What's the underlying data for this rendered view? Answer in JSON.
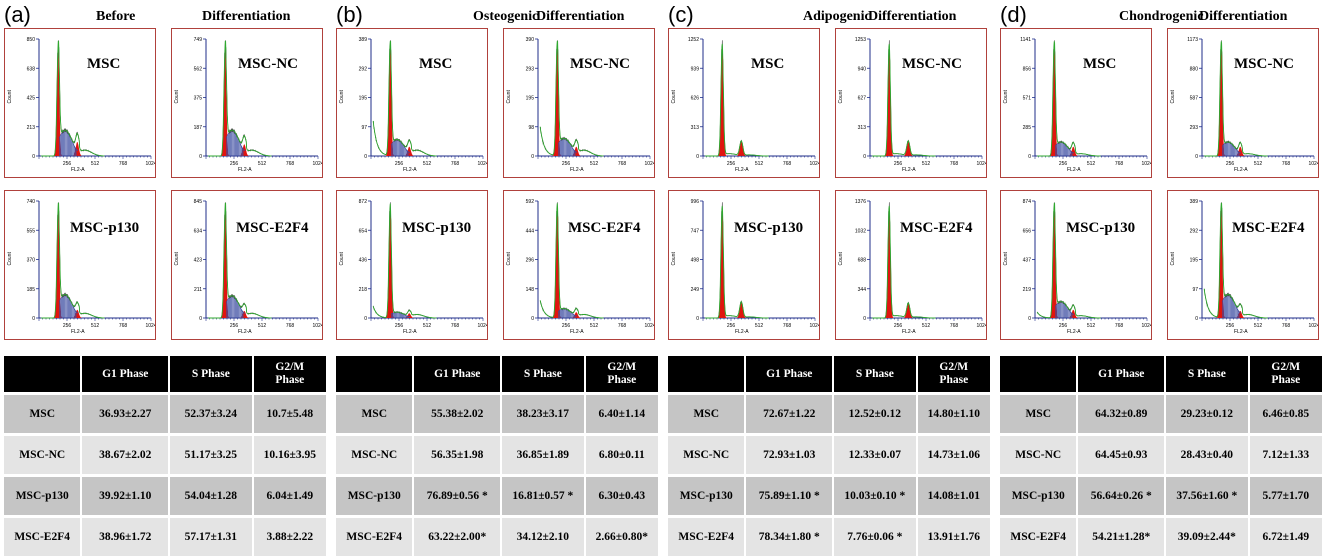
{
  "colors": {
    "frame": "#b0413c",
    "fill": "#e0150f",
    "fit": "#2fa82f",
    "axis": "#1f2d8a",
    "hatch": "#3a4aa0"
  },
  "chart_data": [
    {
      "letter": "(a)",
      "title_parts": [
        "Before",
        "Differentiation"
      ],
      "panels": [
        {
          "label": "MSC",
          "ticks": [
            "850",
            "638",
            "425",
            "213",
            "0"
          ],
          "g1": [
            0.92,
            0.06
          ],
          "g2": [
            0.12,
            0.0
          ],
          "s": 0.22,
          "tail": 0.05
        },
        {
          "label": "MSC-NC",
          "ticks": [
            "749",
            "562",
            "375",
            "187",
            "0"
          ],
          "g1": [
            0.92,
            0.06
          ],
          "g2": [
            0.1,
            0.0
          ],
          "s": 0.22,
          "tail": 0.05
        },
        {
          "label": "MSC-p130",
          "ticks": [
            "740",
            "555",
            "370",
            "185",
            "0"
          ],
          "g1": [
            0.92,
            0.06
          ],
          "g2": [
            0.07,
            0.0
          ],
          "s": 0.2,
          "tail": 0.04
        },
        {
          "label": "MSC-E2F4",
          "ticks": [
            "845",
            "634",
            "423",
            "211",
            "0"
          ],
          "g1": [
            0.92,
            0.06
          ],
          "g2": [
            0.06,
            0.0
          ],
          "s": 0.19,
          "tail": 0.04
        }
      ],
      "table": {
        "headers": [
          "",
          "G1 Phase",
          "S Phase",
          "G2/M Phase"
        ],
        "rows": [
          [
            "MSC",
            "36.93±2.27",
            "52.37±3.24",
            "10.7±5.48"
          ],
          [
            "MSC-NC",
            "38.67±2.02",
            "51.17±3.25",
            "10.16±3.95"
          ],
          [
            "MSC-p130",
            "39.92±1.10",
            "54.04±1.28",
            "6.04±1.49"
          ],
          [
            "MSC-E2F4",
            "38.96±1.72",
            "57.17±1.31",
            "3.88±2.22"
          ]
        ]
      }
    },
    {
      "letter": "(b)",
      "title_parts": [
        "Osteogenic",
        "Differentiation"
      ],
      "panels": [
        {
          "label": "MSC",
          "ticks": [
            "389",
            "292",
            "195",
            "97",
            "0"
          ],
          "g1": [
            0.95,
            0.07
          ],
          "g2": [
            0.08,
            0.0
          ],
          "s": 0.14,
          "tail": 0.05,
          "debris": 0.3
        },
        {
          "label": "MSC-NC",
          "ticks": [
            "390",
            "293",
            "195",
            "98",
            "0"
          ],
          "g1": [
            0.95,
            0.07
          ],
          "g2": [
            0.08,
            0.0
          ],
          "s": 0.15,
          "tail": 0.05,
          "debris": 0.25
        },
        {
          "label": "MSC-p130",
          "ticks": [
            "872",
            "654",
            "436",
            "218",
            "0"
          ],
          "g1": [
            0.95,
            0.06
          ],
          "g2": [
            0.04,
            0.0
          ],
          "s": 0.05,
          "tail": 0.03,
          "debris": 0.1
        },
        {
          "label": "MSC-E2F4",
          "ticks": [
            "592",
            "444",
            "296",
            "148",
            "0"
          ],
          "g1": [
            0.95,
            0.06
          ],
          "g2": [
            0.05,
            0.0
          ],
          "s": 0.08,
          "tail": 0.03,
          "debris": 0.15
        }
      ],
      "table": {
        "headers": [
          "",
          "G1 Phase",
          "S Phase",
          "G2/M Phase"
        ],
        "rows": [
          [
            "MSC",
            "55.38±2.02",
            "38.23±3.17",
            "6.40±1.14"
          ],
          [
            "MSC-NC",
            "56.35±1.98",
            "36.85±1.89",
            "6.80±0.11"
          ],
          [
            "MSC-p130",
            "76.89±0.56 *",
            "16.81±0.57 *",
            "6.30±0.43"
          ],
          [
            "MSC-E2F4",
            "63.22±2.00*",
            "34.12±2.10",
            "2.66±0.80*"
          ]
        ]
      }
    },
    {
      "letter": "(c)",
      "title_parts": [
        "Adipogenic",
        "Differentiation"
      ],
      "panels": [
        {
          "label": "MSC",
          "ticks": [
            "1252",
            "939",
            "626",
            "313",
            "0"
          ],
          "g1": [
            0.95,
            0.04
          ],
          "g2": [
            0.12,
            0.0
          ],
          "s": 0.02,
          "tail": 0.01
        },
        {
          "label": "MSC-NC",
          "ticks": [
            "1253",
            "940",
            "627",
            "313",
            "0"
          ],
          "g1": [
            0.95,
            0.04
          ],
          "g2": [
            0.12,
            0.0
          ],
          "s": 0.02,
          "tail": 0.01
        },
        {
          "label": "MSC-p130",
          "ticks": [
            "996",
            "747",
            "498",
            "249",
            "0"
          ],
          "g1": [
            0.95,
            0.04
          ],
          "g2": [
            0.13,
            0.0
          ],
          "s": 0.02,
          "tail": 0.01
        },
        {
          "label": "MSC-E2F4",
          "ticks": [
            "1376",
            "1032",
            "688",
            "344",
            "0"
          ],
          "g1": [
            0.95,
            0.04
          ],
          "g2": [
            0.12,
            0.0
          ],
          "s": 0.02,
          "tail": 0.01
        }
      ],
      "table": {
        "headers": [
          "",
          "G1 Phase",
          "S Phase",
          "G2/M Phase"
        ],
        "rows": [
          [
            "MSC",
            "72.67±1.22",
            "12.52±0.12",
            "14.80±1.10"
          ],
          [
            "MSC-NC",
            "72.93±1.03",
            "12.33±0.07",
            "14.73±1.06"
          ],
          [
            "MSC-p130",
            "75.89±1.10 *",
            "10.03±0.10 *",
            "14.08±1.01"
          ],
          [
            "MSC-E2F4",
            "78.34±1.80 *",
            "7.76±0.06 *",
            "13.91±1.76"
          ]
        ]
      }
    },
    {
      "letter": "(d)",
      "title_parts": [
        "Chondrogenic",
        "Differentiation"
      ],
      "panels": [
        {
          "label": "MSC",
          "ticks": [
            "1141",
            "856",
            "571",
            "285",
            "0"
          ],
          "g1": [
            0.95,
            0.05
          ],
          "g2": [
            0.08,
            0.0
          ],
          "s": 0.12,
          "tail": 0.02
        },
        {
          "label": "MSC-NC",
          "ticks": [
            "1173",
            "880",
            "587",
            "293",
            "0"
          ],
          "g1": [
            0.95,
            0.05
          ],
          "g2": [
            0.08,
            0.0
          ],
          "s": 0.12,
          "tail": 0.02
        },
        {
          "label": "MSC-p130",
          "ticks": [
            "874",
            "656",
            "437",
            "219",
            "0"
          ],
          "g1": [
            0.95,
            0.06
          ],
          "g2": [
            0.07,
            0.0
          ],
          "s": 0.14,
          "tail": 0.02,
          "debris": 0.05
        },
        {
          "label": "MSC-E2F4",
          "ticks": [
            "389",
            "292",
            "195",
            "97",
            "0"
          ],
          "g1": [
            0.95,
            0.07
          ],
          "g2": [
            0.06,
            0.0
          ],
          "s": 0.2,
          "tail": 0.03,
          "debris": 0.25
        }
      ],
      "table": {
        "headers": [
          "",
          "G1 Phase",
          "S Phase",
          "G2/M Phase"
        ],
        "rows": [
          [
            "MSC",
            "64.32±0.89",
            "29.23±0.12",
            "6.46±0.85"
          ],
          [
            "MSC-NC",
            "64.45±0.93",
            "28.43±0.40",
            "7.12±1.33"
          ],
          [
            "MSC-p130",
            "56.64±0.26 *",
            "37.56±1.60 *",
            "5.77±1.70"
          ],
          [
            "MSC-E2F4",
            "54.21±1.28*",
            "39.09±2.44*",
            "6.72±1.49"
          ]
        ]
      }
    }
  ],
  "axis": {
    "xticks": [
      "256",
      "512",
      "768",
      "1024"
    ],
    "xlabel": "FL2-A",
    "ylabel": "Count"
  }
}
